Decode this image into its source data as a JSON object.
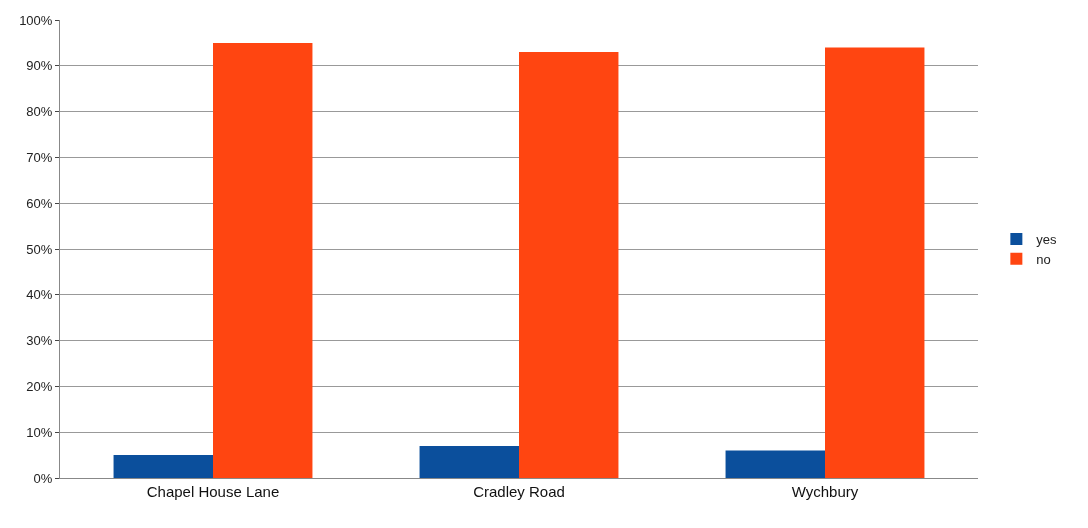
{
  "chart_data": {
    "type": "bar",
    "categories": [
      "Chapel House Lane",
      "Cradley Road",
      "Wychbury"
    ],
    "series": [
      {
        "name": "yes",
        "color": "#0b4f9c",
        "values": [
          5,
          7,
          6
        ]
      },
      {
        "name": "no",
        "color": "#ff4511",
        "values": [
          95,
          93,
          94
        ]
      }
    ],
    "ylim": [
      0,
      100
    ],
    "yticks": [
      {
        "value": 0,
        "label": "0%"
      },
      {
        "value": 10,
        "label": "10%"
      },
      {
        "value": 20,
        "label": "20%"
      },
      {
        "value": 30,
        "label": "30%"
      },
      {
        "value": 40,
        "label": "40%"
      },
      {
        "value": 50,
        "label": "50%"
      },
      {
        "value": 60,
        "label": "60%"
      },
      {
        "value": 70,
        "label": "70%"
      },
      {
        "value": 80,
        "label": "80%"
      },
      {
        "value": 90,
        "label": "90%"
      },
      {
        "value": 100,
        "label": "100%"
      }
    ],
    "grid": "y",
    "legend": "right"
  }
}
